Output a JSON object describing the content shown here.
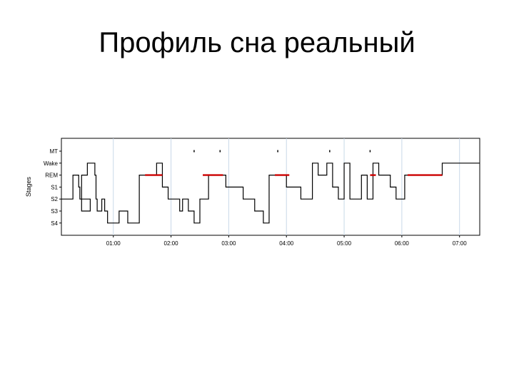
{
  "slide": {
    "title": "Профиль сна реальный"
  },
  "chart_data": {
    "type": "line",
    "ylabel": "Stages",
    "xlabel": "",
    "stages": [
      "MT",
      "Wake",
      "REM",
      "S1",
      "S2",
      "S3",
      "S4"
    ],
    "x_ticks": [
      "01:00",
      "02:00",
      "03:00",
      "04:00",
      "05:00",
      "06:00",
      "07:00"
    ],
    "x_tick_hours": [
      1,
      2,
      3,
      4,
      5,
      6,
      7
    ],
    "xlim_hours": [
      0.1,
      7.35
    ],
    "grid": true,
    "colors": {
      "hypnogram": "#000000",
      "rem": "#cc0000",
      "grid": "#c8d8e8"
    },
    "series": [
      {
        "points": [
          [
            0.1,
            "S2"
          ],
          [
            0.3,
            "REM"
          ],
          [
            0.4,
            "S1"
          ],
          [
            0.42,
            "S2"
          ],
          [
            0.6,
            "S3"
          ],
          [
            0.45,
            "S3"
          ],
          [
            0.45,
            "REM"
          ],
          [
            0.55,
            "Wake"
          ],
          [
            0.68,
            "REM"
          ],
          [
            0.7,
            "S2"
          ],
          [
            0.72,
            "S3"
          ],
          [
            0.8,
            "S2"
          ],
          [
            0.85,
            "S3"
          ],
          [
            0.9,
            "S4"
          ],
          [
            1.1,
            "S3"
          ],
          [
            1.25,
            "S4"
          ],
          [
            1.45,
            "REM"
          ],
          [
            1.75,
            "Wake"
          ],
          [
            1.85,
            "S1"
          ],
          [
            1.95,
            "S2"
          ],
          [
            2.15,
            "S3"
          ],
          [
            2.2,
            "S2"
          ],
          [
            2.3,
            "S3"
          ],
          [
            2.4,
            "S4"
          ],
          [
            2.5,
            "S2"
          ],
          [
            2.65,
            "REM"
          ],
          [
            2.95,
            "S1"
          ],
          [
            3.25,
            "S2"
          ],
          [
            3.45,
            "S3"
          ],
          [
            3.6,
            "S4"
          ],
          [
            3.7,
            "REM"
          ],
          [
            4.0,
            "S1"
          ],
          [
            4.25,
            "S2"
          ],
          [
            4.45,
            "Wake"
          ],
          [
            4.55,
            "REM"
          ],
          [
            4.7,
            "Wake"
          ],
          [
            4.8,
            "S1"
          ],
          [
            4.9,
            "S2"
          ],
          [
            5.0,
            "Wake"
          ],
          [
            5.1,
            "S2"
          ],
          [
            5.3,
            "REM"
          ],
          [
            5.4,
            "S2"
          ],
          [
            5.5,
            "Wake"
          ],
          [
            5.6,
            "REM"
          ],
          [
            5.8,
            "S1"
          ],
          [
            5.9,
            "S2"
          ],
          [
            6.05,
            "REM"
          ],
          [
            6.7,
            "Wake"
          ],
          [
            7.35,
            "Wake"
          ]
        ]
      }
    ],
    "rem_segments": [
      [
        1.55,
        1.85
      ],
      [
        2.55,
        2.9
      ],
      [
        3.8,
        4.05
      ],
      [
        5.45,
        5.55
      ],
      [
        6.1,
        6.7
      ]
    ],
    "movement_marks": [
      2.4,
      2.85,
      3.85,
      4.75,
      5.45
    ]
  }
}
